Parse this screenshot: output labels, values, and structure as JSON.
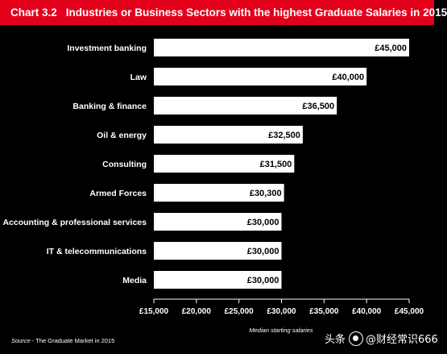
{
  "header": {
    "chart_number": "Chart 3.2",
    "title": "Industries or Business Sectors with the highest Graduate Salaries in 2015"
  },
  "source": {
    "label": "Source",
    "text": " - The Graduate Market in 2015"
  },
  "watermark": {
    "prefix": "头条",
    "handle": "@财经常识666"
  },
  "colors": {
    "background": "#000000",
    "title_bar": "#e3001b",
    "bar": "#ffffff",
    "text": "#ffffff",
    "bar_label": "#000000"
  },
  "chart_data": {
    "type": "bar",
    "orientation": "horizontal",
    "title": "Industries or Business Sectors with the highest Graduate Salaries in 2015",
    "xlabel": "Median starting salaries",
    "ylabel": "",
    "xlim": [
      15000,
      45000
    ],
    "xticks": [
      15000,
      20000,
      25000,
      30000,
      35000,
      40000,
      45000
    ],
    "xtick_labels": [
      "£15,000",
      "£20,000",
      "£25,000",
      "£30,000",
      "£35,000",
      "£40,000",
      "£45,000"
    ],
    "categories": [
      "Investment banking",
      "Law",
      "Banking & finance",
      "Oil & energy",
      "Consulting",
      "Armed Forces",
      "Accounting & professional services",
      "IT & telecommunications",
      "Media"
    ],
    "values": [
      45000,
      40000,
      36500,
      32500,
      31500,
      30300,
      30000,
      30000,
      30000
    ],
    "value_labels": [
      "£45,000",
      "£40,000",
      "£36,500",
      "£32,500",
      "£31,500",
      "£30,300",
      "£30,000",
      "£30,000",
      "£30,000"
    ],
    "grid": false,
    "legend": "none"
  }
}
